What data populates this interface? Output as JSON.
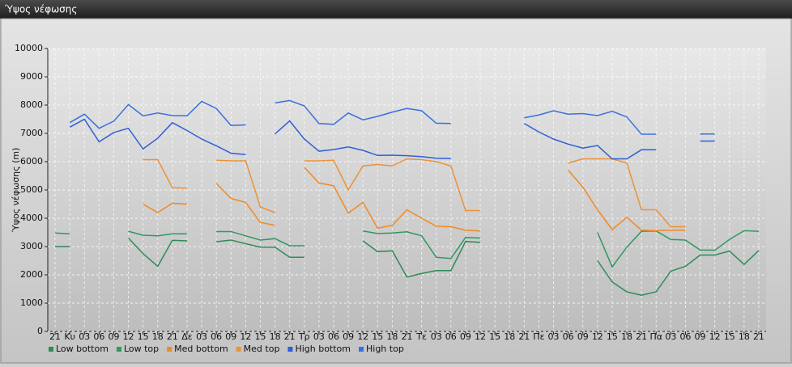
{
  "chart_data": {
    "type": "line",
    "title": "Ύψος νέφωσης",
    "y_label": "Ύψος νέφωσης (m)",
    "categories": [
      "21",
      "Κυ",
      "03",
      "06",
      "09",
      "12",
      "15",
      "18",
      "21",
      "Δε",
      "03",
      "06",
      "09",
      "12",
      "15",
      "18",
      "21",
      "Τρ",
      "03",
      "06",
      "09",
      "12",
      "15",
      "18",
      "21",
      "Τε",
      "03",
      "06",
      "09",
      "12",
      "15",
      "18",
      "21",
      "Πε",
      "03",
      "06",
      "09",
      "12",
      "15",
      "18",
      "21",
      "Πα",
      "03",
      "06",
      "09",
      "12",
      "15",
      "18",
      "21"
    ],
    "ylim": [
      0,
      10000
    ],
    "yticks": [
      0,
      1000,
      2000,
      3000,
      4000,
      5000,
      6000,
      7000,
      8000,
      9000,
      10000
    ],
    "grid": true,
    "series": [
      {
        "name": "Low bottom",
        "color": "#2e8b57",
        "values": [
          3000,
          3000,
          null,
          null,
          null,
          3300,
          2750,
          2300,
          3220,
          3200,
          null,
          3170,
          3230,
          3100,
          2980,
          2980,
          2620,
          2620,
          null,
          null,
          null,
          3200,
          2820,
          2850,
          1920,
          2050,
          2150,
          2150,
          3180,
          3150,
          null,
          null,
          null,
          null,
          null,
          null,
          null,
          2500,
          1750,
          1400,
          1280,
          1400,
          2130,
          2300,
          2700,
          2700,
          2840,
          2370,
          2860
        ]
      },
      {
        "name": "Low top",
        "color": "#2e9960",
        "values": [
          3480,
          3450,
          null,
          null,
          null,
          3540,
          3400,
          3380,
          3450,
          3450,
          null,
          3530,
          3530,
          3380,
          3230,
          3280,
          3030,
          3030,
          null,
          null,
          null,
          3550,
          3460,
          3480,
          3520,
          3380,
          2620,
          2580,
          3320,
          3300,
          null,
          null,
          null,
          null,
          null,
          null,
          null,
          3500,
          2280,
          2980,
          3540,
          3550,
          3250,
          3230,
          2880,
          2870,
          3250,
          3560,
          3540
        ]
      },
      {
        "name": "Med bottom",
        "color": "#f08a24",
        "values": [
          null,
          null,
          null,
          null,
          null,
          null,
          4500,
          4200,
          4530,
          4500,
          null,
          5230,
          4700,
          4560,
          3850,
          3750,
          null,
          5800,
          5250,
          5150,
          4180,
          4560,
          3650,
          3750,
          4300,
          4000,
          3720,
          3700,
          3580,
          3550,
          null,
          null,
          null,
          null,
          null,
          5700,
          5100,
          4300,
          3600,
          4030,
          3580,
          3560,
          3580,
          3580,
          null,
          null,
          null,
          null,
          null
        ]
      },
      {
        "name": "Med top",
        "color": "#ec9236",
        "values": [
          null,
          null,
          null,
          null,
          null,
          null,
          6070,
          6070,
          5080,
          5060,
          null,
          6050,
          6030,
          6030,
          4400,
          4200,
          null,
          6030,
          6030,
          6050,
          5000,
          5850,
          5900,
          5850,
          6100,
          6070,
          6000,
          5850,
          4270,
          4270,
          null,
          null,
          null,
          null,
          null,
          5950,
          6100,
          6100,
          6100,
          5950,
          4300,
          4300,
          3700,
          3700,
          null,
          null,
          null,
          null,
          null
        ]
      },
      {
        "name": "High bottom",
        "color": "#2d5fd6",
        "values": [
          null,
          7220,
          7500,
          6700,
          7030,
          7180,
          6450,
          6830,
          7380,
          7100,
          6800,
          6560,
          6300,
          6250,
          null,
          6980,
          7440,
          6800,
          6370,
          6430,
          6520,
          6400,
          6220,
          6230,
          6210,
          6180,
          6120,
          6110,
          null,
          null,
          null,
          null,
          7350,
          7050,
          6800,
          6620,
          6480,
          6570,
          6100,
          6100,
          6420,
          6420,
          null,
          null,
          6730,
          6730,
          null,
          null,
          null
        ]
      },
      {
        "name": "High top",
        "color": "#3a6fe0",
        "values": [
          null,
          7380,
          7680,
          7180,
          7430,
          8020,
          7620,
          7720,
          7630,
          7620,
          8130,
          7880,
          7280,
          7300,
          null,
          8080,
          8160,
          7970,
          7350,
          7320,
          7720,
          7480,
          7600,
          7750,
          7880,
          7800,
          7360,
          7350,
          null,
          null,
          null,
          null,
          7550,
          7650,
          7800,
          7680,
          7700,
          7630,
          7780,
          7580,
          6970,
          6970,
          null,
          null,
          6980,
          6980,
          null,
          null,
          null
        ]
      }
    ]
  }
}
